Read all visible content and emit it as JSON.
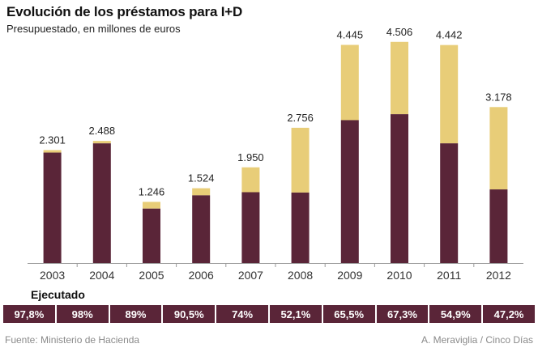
{
  "header": {
    "title": "Evolución de los préstamos para I+D",
    "subtitle": "Presupuestado, en millones de euros"
  },
  "chart_data": {
    "type": "bar",
    "stacked": true,
    "categories": [
      "2003",
      "2004",
      "2005",
      "2006",
      "2007",
      "2008",
      "2009",
      "2010",
      "2011",
      "2012"
    ],
    "total_labels": [
      "2.301",
      "2.488",
      "1.246",
      "1.524",
      "1.950",
      "2.756",
      "4.445",
      "4.506",
      "4.442",
      "3.178"
    ],
    "totals": [
      2301,
      2488,
      1246,
      1524,
      1950,
      2756,
      4445,
      4506,
      4442,
      3178
    ],
    "executed_pct": [
      97.8,
      98,
      89,
      90.5,
      74,
      52.1,
      65.5,
      67.3,
      54.9,
      47.2
    ],
    "ylim": [
      0,
      4700
    ],
    "grid": false,
    "colors": {
      "executed": "#5a2538",
      "budget": "#e8cd78",
      "axis": "#9a9a9a"
    }
  },
  "executed": {
    "label": "Ejecutado",
    "values": [
      "97,8%",
      "98%",
      "89%",
      "90,5%",
      "74%",
      "52,1%",
      "65,5%",
      "67,3%",
      "54,9%",
      "47,2%"
    ]
  },
  "footer": {
    "source": "Fuente: Ministerio de Hacienda",
    "credit": "A. Meraviglia / Cinco Días"
  }
}
